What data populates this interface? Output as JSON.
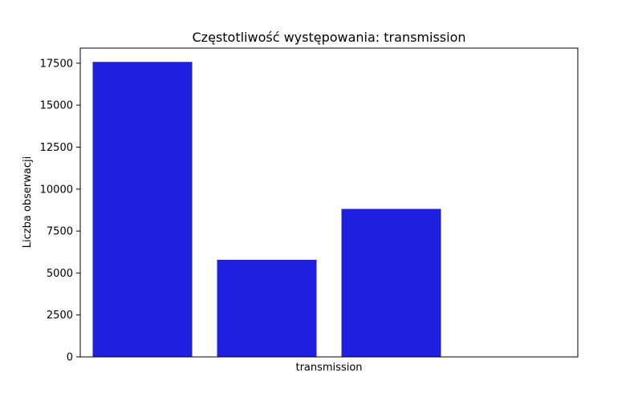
{
  "chart_data": {
    "type": "bar",
    "title": "Częstotliwość występowania: transmission",
    "xlabel": "transmission",
    "ylabel": "Liczba obserwacji",
    "values": [
      17580,
      5790,
      8820,
      0
    ],
    "ylim": [
      0,
      18400
    ],
    "yticks": [
      0,
      2500,
      5000,
      7500,
      10000,
      12500,
      15000,
      17500
    ],
    "bar_color": "#1f1fe0",
    "grid": false,
    "legend": "none"
  }
}
